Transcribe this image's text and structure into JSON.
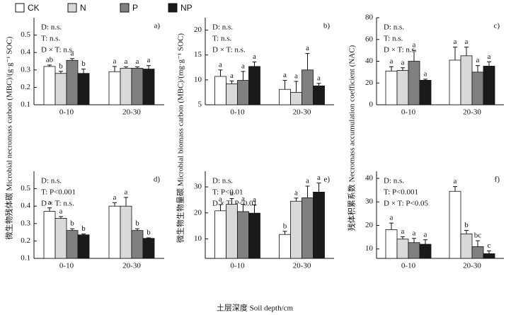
{
  "xlabel": "土层深度 Soil depth/cm",
  "ylabels": [
    "微生物残体碳 Microbial necromass carbon (MBC)/(g·g⁻¹ SOC)",
    "微生物生物量碳 Microbial biomass carbon (MBC)/(mg·g⁻¹ SOC)",
    "残体积累系数 Necromass accumulation coefficient (NAC)"
  ],
  "chart_data": [
    {
      "type": "bar",
      "panel": "a)",
      "categories": [
        "0-10",
        "20-30"
      ],
      "stats": [
        "D: n.s.",
        "T: n.s.",
        "D × T: n.s."
      ],
      "ylim": [
        0.1,
        0.6
      ],
      "yticks": [
        0.1,
        0.2,
        0.3,
        0.4,
        0.5
      ],
      "series": [
        {
          "name": "CK",
          "color": "#ffffff",
          "values": [
            0.32,
            0.29
          ],
          "errors": [
            0.008,
            0.03
          ],
          "letters": [
            "ab",
            "a"
          ]
        },
        {
          "name": "N",
          "color": "#d9d9d9",
          "values": [
            0.28,
            0.31
          ],
          "errors": [
            0.012,
            0.008
          ],
          "letters": [
            "b",
            "a"
          ]
        },
        {
          "name": "P",
          "color": "#808080",
          "values": [
            0.355,
            0.31
          ],
          "errors": [
            0.01,
            0.008
          ],
          "letters": [
            "a",
            "a"
          ]
        },
        {
          "name": "NP",
          "color": "#1a1a1a",
          "values": [
            0.28,
            0.305
          ],
          "errors": [
            0.025,
            0.02
          ],
          "letters": [
            "b",
            "a"
          ]
        }
      ]
    },
    {
      "type": "bar",
      "panel": "b)",
      "categories": [
        "0-10",
        "20-30"
      ],
      "stats": [
        "D: n.s.",
        "T: n.s.",
        "D × T: n.s."
      ],
      "ylim": [
        5,
        22.5
      ],
      "yticks": [
        5,
        10,
        15,
        20
      ],
      "series": [
        {
          "name": "CK",
          "color": "#ffffff",
          "values": [
            10.7,
            8.1
          ],
          "errors": [
            1.3,
            1.8
          ],
          "letters": [
            "a",
            "a"
          ]
        },
        {
          "name": "N",
          "color": "#d9d9d9",
          "values": [
            9.2,
            7.5
          ],
          "errors": [
            0.6,
            2.2
          ],
          "letters": [
            "a",
            "a"
          ]
        },
        {
          "name": "P",
          "color": "#808080",
          "values": [
            9.9,
            12.0
          ],
          "errors": [
            1.8,
            3.3
          ],
          "letters": [
            "a",
            "a"
          ]
        },
        {
          "name": "NP",
          "color": "#1a1a1a",
          "values": [
            12.7,
            8.8
          ],
          "errors": [
            0.9,
            0.5
          ],
          "letters": [
            "a",
            "a"
          ]
        }
      ]
    },
    {
      "type": "bar",
      "panel": "c)",
      "categories": [
        "0-10",
        "20-30"
      ],
      "stats": [
        "D: n.s.",
        "T: n.s.",
        "D × T: n.s."
      ],
      "ylim": [
        0,
        80
      ],
      "yticks": [
        0,
        20,
        40,
        60,
        80
      ],
      "series": [
        {
          "name": "CK",
          "color": "#ffffff",
          "values": [
            31,
            41
          ],
          "errors": [
            4,
            12
          ],
          "letters": [
            "a",
            "a"
          ]
        },
        {
          "name": "N",
          "color": "#d9d9d9",
          "values": [
            31.5,
            45
          ],
          "errors": [
            2.5,
            8
          ],
          "letters": [
            "a",
            "a"
          ]
        },
        {
          "name": "P",
          "color": "#808080",
          "values": [
            40,
            30
          ],
          "errors": [
            10,
            6
          ],
          "letters": [
            "a",
            "a"
          ]
        },
        {
          "name": "NP",
          "color": "#1a1a1a",
          "values": [
            22.5,
            35.5
          ],
          "errors": [
            1,
            4
          ],
          "letters": [
            "a",
            "a"
          ]
        }
      ]
    },
    {
      "type": "bar",
      "panel": "d)",
      "categories": [
        "0-10",
        "20-30"
      ],
      "stats": [
        "D: n.s.",
        "T: P<0.001",
        "D × T: n.s."
      ],
      "ylim": [
        0.1,
        0.6
      ],
      "yticks": [
        0.1,
        0.2,
        0.3,
        0.4,
        0.5
      ],
      "series": [
        {
          "name": "CK",
          "color": "#ffffff",
          "values": [
            0.37,
            0.4
          ],
          "errors": [
            0.02,
            0.02
          ],
          "letters": [
            "a",
            "a"
          ]
        },
        {
          "name": "N",
          "color": "#d9d9d9",
          "values": [
            0.33,
            0.4
          ],
          "errors": [
            0.01,
            0.05
          ],
          "letters": [
            "a",
            "a"
          ]
        },
        {
          "name": "P",
          "color": "#808080",
          "values": [
            0.26,
            0.26
          ],
          "errors": [
            0.01,
            0.01
          ],
          "letters": [
            "b",
            "b"
          ]
        },
        {
          "name": "NP",
          "color": "#1a1a1a",
          "values": [
            0.235,
            0.215
          ],
          "errors": [
            0.005,
            0.003
          ],
          "letters": [
            "b",
            "b"
          ]
        }
      ]
    },
    {
      "type": "bar",
      "panel": "e)",
      "categories": [
        "0-10",
        "20-30"
      ],
      "stats": [
        "D: n.s.",
        "T: P<0.01",
        "D × T: P<0.01"
      ],
      "ylim": [
        2.5,
        36
      ],
      "yticks": [
        10,
        20,
        30
      ],
      "series": [
        {
          "name": "CK",
          "color": "#ffffff",
          "values": [
            20.8,
            11.7
          ],
          "errors": [
            2.4,
            1.2
          ],
          "letters": [
            "a",
            "b"
          ]
        },
        {
          "name": "N",
          "color": "#d9d9d9",
          "values": [
            23.3,
            24.5
          ],
          "errors": [
            2.2,
            1.2
          ],
          "letters": [
            "a",
            "a"
          ]
        },
        {
          "name": "P",
          "color": "#808080",
          "values": [
            20.5,
            25.8
          ],
          "errors": [
            2.8,
            4.5
          ],
          "letters": [
            "a",
            "a"
          ]
        },
        {
          "name": "NP",
          "color": "#1a1a1a",
          "values": [
            19.9,
            28.0
          ],
          "errors": [
            3.2,
            3.5
          ],
          "letters": [
            "a",
            "a"
          ]
        }
      ]
    },
    {
      "type": "bar",
      "panel": "f)",
      "categories": [
        "0-10",
        "20-30"
      ],
      "stats": [
        "D: n.s.",
        "T: P<0.001",
        "D × T: P<0.05"
      ],
      "ylim": [
        6,
        43
      ],
      "yticks": [
        10,
        20,
        30,
        40
      ],
      "series": [
        {
          "name": "CK",
          "color": "#ffffff",
          "values": [
            18.2,
            34.5
          ],
          "errors": [
            2.8,
            2
          ],
          "letters": [
            "a",
            "a"
          ]
        },
        {
          "name": "N",
          "color": "#d9d9d9",
          "values": [
            14.2,
            16.4
          ],
          "errors": [
            1,
            1.5
          ],
          "letters": [
            "a",
            "b"
          ]
        },
        {
          "name": "P",
          "color": "#808080",
          "values": [
            12.7,
            11.0
          ],
          "errors": [
            1.8,
            2.5
          ],
          "letters": [
            "a",
            "bc"
          ]
        },
        {
          "name": "NP",
          "color": "#1a1a1a",
          "values": [
            12.0,
            8.0
          ],
          "errors": [
            1.9,
            1.2
          ],
          "letters": [
            "a",
            "c"
          ]
        }
      ]
    }
  ]
}
